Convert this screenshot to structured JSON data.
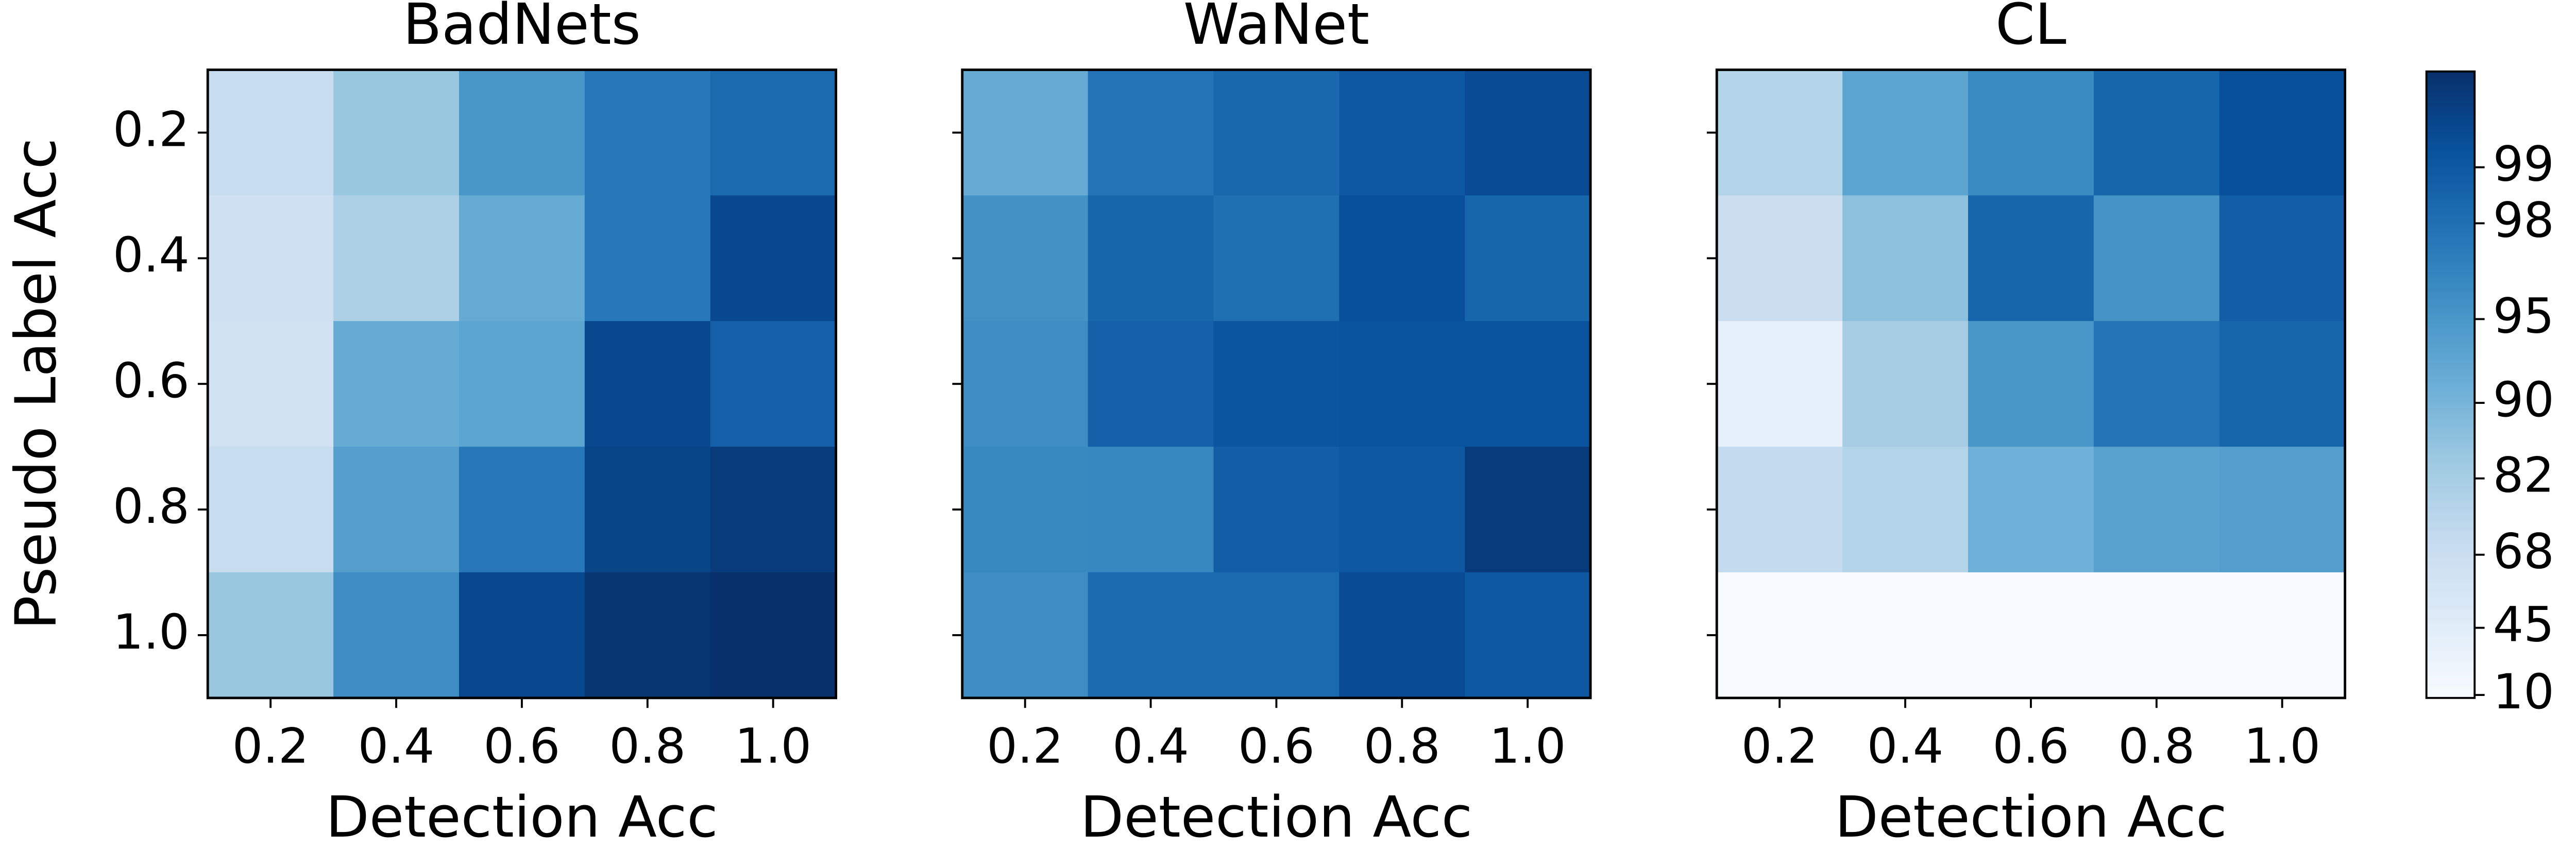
{
  "chart_data": [
    {
      "type": "heatmap",
      "title": "BadNets",
      "xlabel": "Detection Acc",
      "ylabel": "Pseudo Label Acc",
      "categories": [
        "0.2",
        "0.4",
        "0.6",
        "0.8",
        "1.0"
      ],
      "y_categories": [
        "0.2",
        "0.4",
        "0.6",
        "0.8",
        "1.0"
      ],
      "values": [
        [
          70,
          85,
          95,
          97.5,
          98.3
        ],
        [
          65,
          80,
          92,
          97.5,
          99.5
        ],
        [
          63,
          92,
          93,
          99.5,
          98.7
        ],
        [
          70,
          94,
          97.5,
          99.6,
          99.8
        ],
        [
          85,
          96,
          99.5,
          99.9,
          100
        ]
      ]
    },
    {
      "type": "heatmap",
      "title": "WaNet",
      "xlabel": "Detection Acc",
      "categories": [
        "0.2",
        "0.4",
        "0.6",
        "0.8",
        "1.0"
      ],
      "values": [
        [
          92,
          97.8,
          98.4,
          99,
          99.4
        ],
        [
          95.5,
          98.5,
          98,
          99.3,
          98.5
        ],
        [
          96,
          98.7,
          99.1,
          99.2,
          99.2
        ],
        [
          96.3,
          96.5,
          98.8,
          99,
          99.8
        ],
        [
          96,
          98.3,
          98.3,
          99.4,
          99
        ]
      ]
    },
    {
      "type": "heatmap",
      "title": "CL",
      "xlabel": "Detection Acc",
      "categories": [
        "0.2",
        "0.4",
        "0.6",
        "0.8",
        "1.0"
      ],
      "values": [
        [
          78,
          93,
          96.2,
          98.5,
          99.3
        ],
        [
          68,
          87,
          98.5,
          95.3,
          98.8
        ],
        [
          40,
          82,
          95,
          97.8,
          98.5
        ],
        [
          72,
          78,
          91,
          93.5,
          94
        ],
        [
          10,
          10,
          10,
          10,
          10
        ]
      ]
    },
    {
      "type": "colorbar",
      "colormap": "Blues",
      "scale": "reverse-log",
      "clim": [
        8,
        100
      ],
      "ticks": [
        10,
        45,
        68,
        82,
        90,
        95,
        98,
        99
      ]
    }
  ]
}
